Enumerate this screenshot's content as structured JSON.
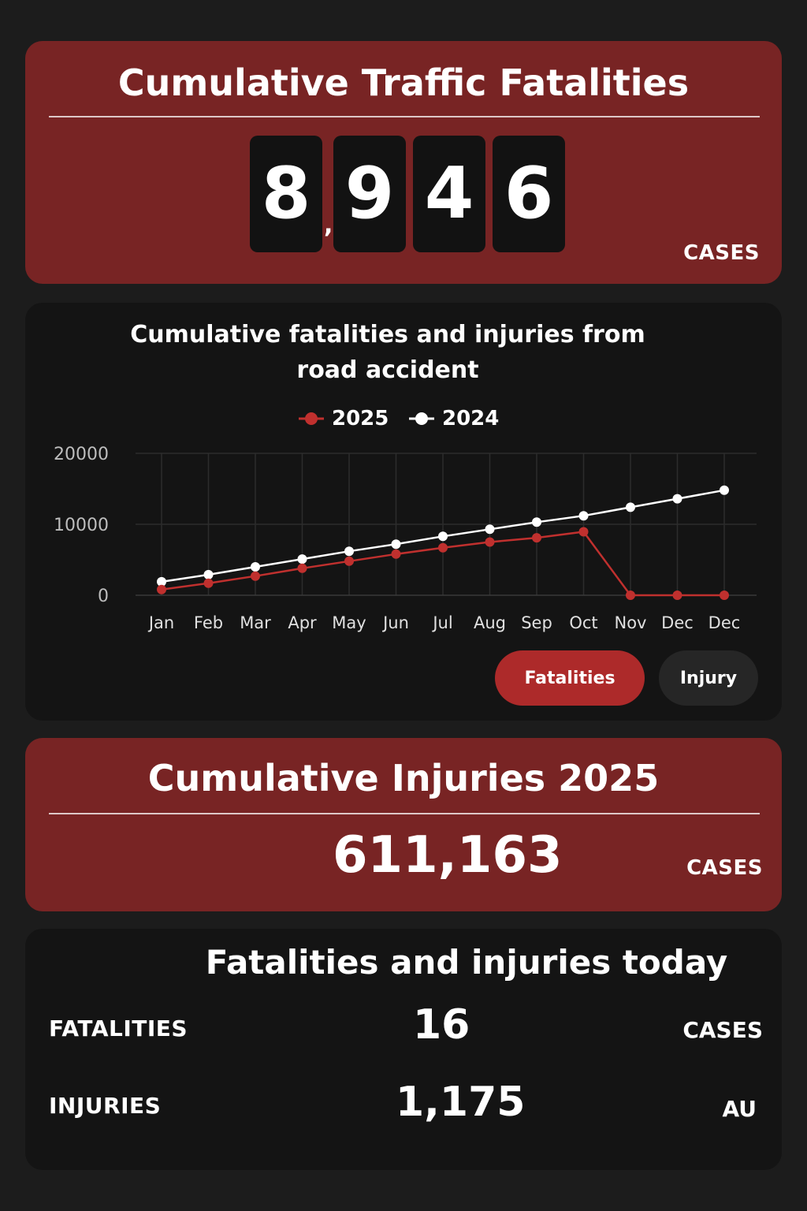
{
  "fatalities_card": {
    "title": "Cumulative Traffic Fatalities",
    "digits": [
      "8",
      "9",
      "4",
      "6"
    ],
    "separator": ",",
    "unit": "CASES"
  },
  "chart_card": {
    "title": "Cumulative fatalities and injuries from road accident",
    "buttons": {
      "fatalities": "Fatalities",
      "injury": "Injury"
    },
    "active_tab": "Fatalities"
  },
  "chart_data": {
    "type": "line",
    "categories": [
      "Jan",
      "Feb",
      "Mar",
      "Apr",
      "May",
      "Jun",
      "Jul",
      "Aug",
      "Sep",
      "Oct",
      "Nov",
      "Dec",
      "Dec"
    ],
    "series": [
      {
        "name": "2025",
        "color": "#c0302e",
        "values": [
          800,
          1700,
          2700,
          3800,
          4800,
          5800,
          6700,
          7500,
          8100,
          8946,
          0,
          0,
          0
        ]
      },
      {
        "name": "2024",
        "color": "#ffffff",
        "values": [
          1900,
          2900,
          4000,
          5100,
          6200,
          7200,
          8300,
          9300,
          10300,
          11200,
          12400,
          13600,
          14800
        ]
      }
    ],
    "yticks": [
      0,
      10000,
      20000
    ],
    "ylim": [
      0,
      20000
    ],
    "grid": true,
    "legend": "top-center"
  },
  "injuries_card": {
    "title": "Cumulative Injuries 2025",
    "value": "611,163",
    "unit": "CASES"
  },
  "today_card": {
    "title": "Fatalities and injuries today",
    "fatalities": {
      "label": "FATALITIES",
      "value": "16",
      "unit": "CASES"
    },
    "injuries": {
      "label": "INJURIES",
      "value": "1,175",
      "unit": "AU"
    }
  },
  "colors": {
    "card_red": "#782424",
    "accent_red": "#ad2a2a",
    "background": "#1c1c1c"
  }
}
